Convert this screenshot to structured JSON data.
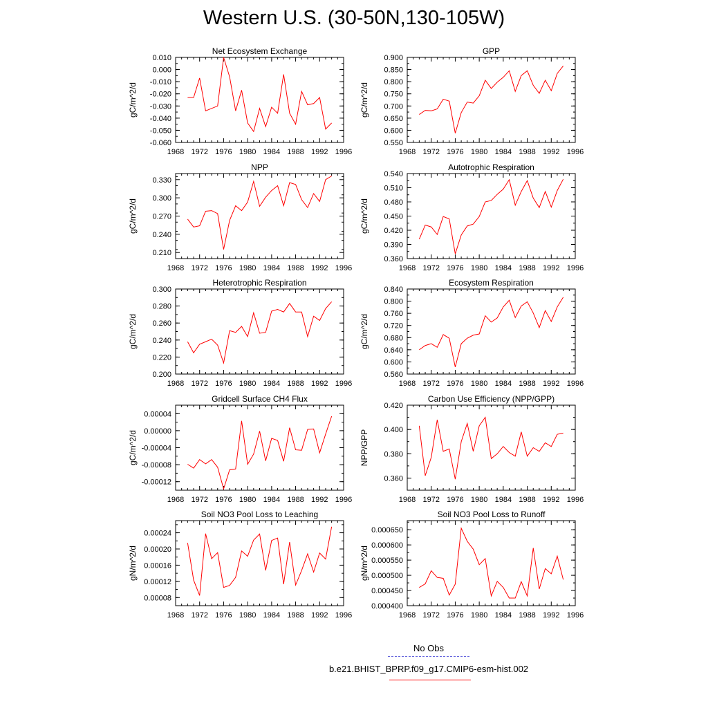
{
  "figure": {
    "title": "Western U.S. (30-50N,130-105W)"
  },
  "legend": {
    "items": [
      {
        "label": "No Obs",
        "color": "#6666dd",
        "style": "dashed"
      },
      {
        "label": "b.e21.BHIST_BPRP.f09_g17.CMIP6-esm-hist.002",
        "color": "#ff0000",
        "style": "solid"
      }
    ]
  },
  "chart_data": [
    {
      "type": "line",
      "title": "Net Ecosystem Exchange",
      "ylabel": "gC/m^2/d",
      "xlim": [
        1968,
        1996
      ],
      "xticks": [
        1968,
        1972,
        1976,
        1980,
        1984,
        1988,
        1992,
        1996
      ],
      "ylim": [
        -0.06,
        0.01
      ],
      "yticks": [
        -0.06,
        -0.05,
        -0.04,
        -0.03,
        -0.02,
        -0.01,
        0.0,
        0.01
      ],
      "ytick_labels": [
        "-0.060",
        "-0.050",
        "-0.040",
        "-0.030",
        "-0.020",
        "-0.010",
        "0.000",
        "0.010"
      ],
      "x": [
        1970,
        1971,
        1972,
        1973,
        1974,
        1975,
        1976,
        1977,
        1978,
        1979,
        1980,
        1981,
        1982,
        1983,
        1984,
        1985,
        1986,
        1987,
        1988,
        1989,
        1990,
        1991,
        1992,
        1993,
        1994
      ],
      "series": [
        {
          "color": "#ff0000",
          "values": [
            -0.023,
            -0.023,
            -0.007,
            -0.034,
            -0.032,
            -0.03,
            0.01,
            -0.006,
            -0.034,
            -0.017,
            -0.044,
            -0.051,
            -0.032,
            -0.047,
            -0.031,
            -0.036,
            -0.004,
            -0.036,
            -0.045,
            -0.018,
            -0.029,
            -0.028,
            -0.023,
            -0.049,
            -0.044
          ]
        }
      ]
    },
    {
      "type": "line",
      "title": "GPP",
      "ylabel": "gC/m^2/d",
      "xlim": [
        1968,
        1996
      ],
      "xticks": [
        1968,
        1972,
        1976,
        1980,
        1984,
        1988,
        1992,
        1996
      ],
      "ylim": [
        0.55,
        0.9
      ],
      "yticks": [
        0.55,
        0.6,
        0.65,
        0.7,
        0.75,
        0.8,
        0.85,
        0.9
      ],
      "ytick_labels": [
        "0.550",
        "0.600",
        "0.650",
        "0.700",
        "0.750",
        "0.800",
        "0.850",
        "0.900"
      ],
      "x": [
        1970,
        1971,
        1972,
        1973,
        1974,
        1975,
        1976,
        1977,
        1978,
        1979,
        1980,
        1981,
        1982,
        1983,
        1984,
        1985,
        1986,
        1987,
        1988,
        1989,
        1990,
        1991,
        1992,
        1993,
        1994
      ],
      "series": [
        {
          "color": "#ff0000",
          "values": [
            0.665,
            0.682,
            0.68,
            0.688,
            0.728,
            0.72,
            0.588,
            0.673,
            0.716,
            0.712,
            0.742,
            0.806,
            0.772,
            0.798,
            0.818,
            0.845,
            0.76,
            0.825,
            0.845,
            0.785,
            0.752,
            0.806,
            0.763,
            0.834,
            0.865
          ]
        }
      ]
    },
    {
      "type": "line",
      "title": "NPP",
      "ylabel": "gC/m^2/d",
      "xlim": [
        1968,
        1996
      ],
      "xticks": [
        1968,
        1972,
        1976,
        1980,
        1984,
        1988,
        1992,
        1996
      ],
      "ylim": [
        0.2,
        0.34
      ],
      "yticks": [
        0.21,
        0.24,
        0.27,
        0.3,
        0.33
      ],
      "ytick_labels": [
        "0.210",
        "0.240",
        "0.270",
        "0.300",
        "0.330"
      ],
      "x": [
        1970,
        1971,
        1972,
        1973,
        1974,
        1975,
        1976,
        1977,
        1978,
        1979,
        1980,
        1981,
        1982,
        1983,
        1984,
        1985,
        1986,
        1987,
        1988,
        1989,
        1990,
        1991,
        1992,
        1993,
        1994
      ],
      "series": [
        {
          "color": "#ff0000",
          "values": [
            0.265,
            0.252,
            0.254,
            0.278,
            0.279,
            0.274,
            0.215,
            0.263,
            0.287,
            0.279,
            0.293,
            0.327,
            0.286,
            0.301,
            0.312,
            0.32,
            0.287,
            0.325,
            0.322,
            0.297,
            0.284,
            0.307,
            0.294,
            0.33,
            0.336
          ]
        }
      ]
    },
    {
      "type": "line",
      "title": "Autotrophic Respiration",
      "ylabel": "gC/m^2/d",
      "xlim": [
        1968,
        1996
      ],
      "xticks": [
        1968,
        1972,
        1976,
        1980,
        1984,
        1988,
        1992,
        1996
      ],
      "ylim": [
        0.36,
        0.54
      ],
      "yticks": [
        0.36,
        0.39,
        0.42,
        0.45,
        0.48,
        0.51,
        0.54
      ],
      "ytick_labels": [
        "0.360",
        "0.390",
        "0.420",
        "0.450",
        "0.480",
        "0.510",
        "0.540"
      ],
      "x": [
        1970,
        1971,
        1972,
        1973,
        1974,
        1975,
        1976,
        1977,
        1978,
        1979,
        1980,
        1981,
        1982,
        1983,
        1984,
        1985,
        1986,
        1987,
        1988,
        1989,
        1990,
        1991,
        1992,
        1993,
        1994
      ],
      "series": [
        {
          "color": "#ff0000",
          "values": [
            0.401,
            0.431,
            0.427,
            0.411,
            0.449,
            0.444,
            0.37,
            0.41,
            0.429,
            0.433,
            0.449,
            0.48,
            0.483,
            0.496,
            0.507,
            0.527,
            0.473,
            0.502,
            0.525,
            0.488,
            0.468,
            0.502,
            0.469,
            0.504,
            0.528
          ]
        }
      ]
    },
    {
      "type": "line",
      "title": "Heterotrophic Respiration",
      "ylabel": "gC/m^2/d",
      "xlim": [
        1968,
        1996
      ],
      "xticks": [
        1968,
        1972,
        1976,
        1980,
        1984,
        1988,
        1992,
        1996
      ],
      "ylim": [
        0.2,
        0.3
      ],
      "yticks": [
        0.2,
        0.22,
        0.24,
        0.26,
        0.28,
        0.3
      ],
      "ytick_labels": [
        "0.200",
        "0.220",
        "0.240",
        "0.260",
        "0.280",
        "0.300"
      ],
      "x": [
        1970,
        1971,
        1972,
        1973,
        1974,
        1975,
        1976,
        1977,
        1978,
        1979,
        1980,
        1981,
        1982,
        1983,
        1984,
        1985,
        1986,
        1987,
        1988,
        1989,
        1990,
        1991,
        1992,
        1993,
        1994
      ],
      "series": [
        {
          "color": "#ff0000",
          "values": [
            0.238,
            0.225,
            0.235,
            0.238,
            0.241,
            0.234,
            0.213,
            0.251,
            0.249,
            0.256,
            0.244,
            0.272,
            0.248,
            0.249,
            0.274,
            0.276,
            0.273,
            0.283,
            0.273,
            0.273,
            0.244,
            0.268,
            0.263,
            0.277,
            0.285
          ]
        }
      ]
    },
    {
      "type": "line",
      "title": "Ecosystem Respiration",
      "ylabel": "gC/m^2/d",
      "xlim": [
        1968,
        1996
      ],
      "xticks": [
        1968,
        1972,
        1976,
        1980,
        1984,
        1988,
        1992,
        1996
      ],
      "ylim": [
        0.56,
        0.84
      ],
      "yticks": [
        0.56,
        0.6,
        0.64,
        0.68,
        0.72,
        0.76,
        0.8,
        0.84
      ],
      "ytick_labels": [
        "0.560",
        "0.600",
        "0.640",
        "0.680",
        "0.720",
        "0.760",
        "0.800",
        "0.840"
      ],
      "x": [
        1970,
        1971,
        1972,
        1973,
        1974,
        1975,
        1976,
        1977,
        1978,
        1979,
        1980,
        1981,
        1982,
        1983,
        1984,
        1985,
        1986,
        1987,
        1988,
        1989,
        1990,
        1991,
        1992,
        1993,
        1994
      ],
      "series": [
        {
          "color": "#ff0000",
          "values": [
            0.64,
            0.654,
            0.66,
            0.648,
            0.69,
            0.678,
            0.583,
            0.66,
            0.678,
            0.688,
            0.692,
            0.752,
            0.731,
            0.745,
            0.781,
            0.803,
            0.746,
            0.784,
            0.798,
            0.761,
            0.713,
            0.769,
            0.733,
            0.781,
            0.813
          ]
        }
      ]
    },
    {
      "type": "line",
      "title": "Gridcell Surface CH4 Flux",
      "ylabel": "gC/m^2/d",
      "xlim": [
        1968,
        1996
      ],
      "xticks": [
        1968,
        1972,
        1976,
        1980,
        1984,
        1988,
        1992,
        1996
      ],
      "ylim": [
        -0.00014,
        6e-05
      ],
      "yticks": [
        -0.00012,
        -8e-05,
        -4e-05,
        0.0,
        4e-05
      ],
      "ytick_labels": [
        "-0.00012",
        "-0.00008",
        "-0.00004",
        "0.00000",
        "0.00004"
      ],
      "x": [
        1970,
        1971,
        1972,
        1973,
        1974,
        1975,
        1976,
        1977,
        1978,
        1979,
        1980,
        1981,
        1982,
        1983,
        1984,
        1985,
        1986,
        1987,
        1988,
        1989,
        1990,
        1991,
        1992,
        1993,
        1994
      ],
      "series": [
        {
          "color": "#ff0000",
          "values": [
            -7.9e-05,
            -8.8e-05,
            -6.8e-05,
            -7.8e-05,
            -6.8e-05,
            -8.6e-05,
            -0.000137,
            -9.2e-05,
            -9e-05,
            2.3e-05,
            -7.9e-05,
            -5.5e-05,
            -1e-06,
            -7.1e-05,
            -1.8e-05,
            -2.3e-05,
            -7.2e-05,
            7e-06,
            -4.5e-05,
            -4.6e-05,
            3e-06,
            4e-06,
            -5.2e-05,
            -8e-06,
            3.4e-05
          ]
        }
      ]
    },
    {
      "type": "line",
      "title": "Carbon Use Efficiency (NPP/GPP)",
      "ylabel": "NPP/GPP",
      "xlim": [
        1968,
        1996
      ],
      "xticks": [
        1968,
        1972,
        1976,
        1980,
        1984,
        1988,
        1992,
        1996
      ],
      "ylim": [
        0.35,
        0.42
      ],
      "yticks": [
        0.36,
        0.38,
        0.4,
        0.42
      ],
      "ytick_labels": [
        "0.360",
        "0.380",
        "0.400",
        "0.420"
      ],
      "x": [
        1970,
        1971,
        1972,
        1973,
        1974,
        1975,
        1976,
        1977,
        1978,
        1979,
        1980,
        1981,
        1982,
        1983,
        1984,
        1985,
        1986,
        1987,
        1988,
        1989,
        1990,
        1991,
        1992,
        1993,
        1994
      ],
      "series": [
        {
          "color": "#ff0000",
          "values": [
            0.403,
            0.362,
            0.377,
            0.408,
            0.382,
            0.384,
            0.359,
            0.39,
            0.405,
            0.382,
            0.403,
            0.41,
            0.376,
            0.38,
            0.386,
            0.381,
            0.378,
            0.398,
            0.378,
            0.385,
            0.382,
            0.389,
            0.386,
            0.396,
            0.397
          ]
        }
      ]
    },
    {
      "type": "line",
      "title": "Soil NO3 Pool Loss to Leaching",
      "ylabel": "gN/m^2/d",
      "xlim": [
        1968,
        1996
      ],
      "xticks": [
        1968,
        1972,
        1976,
        1980,
        1984,
        1988,
        1992,
        1996
      ],
      "ylim": [
        6e-05,
        0.00027
      ],
      "yticks": [
        8e-05,
        0.00012,
        0.00016,
        0.0002,
        0.00024
      ],
      "ytick_labels": [
        "0.00008",
        "0.00012",
        "0.00016",
        "0.00020",
        "0.00024"
      ],
      "x": [
        1970,
        1971,
        1972,
        1973,
        1974,
        1975,
        1976,
        1977,
        1978,
        1979,
        1980,
        1981,
        1982,
        1983,
        1984,
        1985,
        1986,
        1987,
        1988,
        1989,
        1990,
        1991,
        1992,
        1993,
        1994
      ],
      "series": [
        {
          "color": "#ff0000",
          "values": [
            0.000215,
            0.000123,
            8.5e-05,
            0.000238,
            0.000176,
            0.000191,
            0.000105,
            0.00011,
            0.00013,
            0.000195,
            0.000182,
            0.000222,
            0.000237,
            0.000147,
            0.000221,
            0.000227,
            0.000113,
            0.000217,
            0.000111,
            0.000147,
            0.000188,
            0.000143,
            0.00019,
            0.000175,
            0.000255
          ]
        }
      ]
    },
    {
      "type": "line",
      "title": "Soil NO3 Pool Loss to Runoff",
      "ylabel": "gN/m^2/d",
      "xlim": [
        1968,
        1996
      ],
      "xticks": [
        1968,
        1972,
        1976,
        1980,
        1984,
        1988,
        1992,
        1996
      ],
      "ylim": [
        0.0004,
        0.00068
      ],
      "yticks": [
        0.0004,
        0.00045,
        0.0005,
        0.00055,
        0.0006,
        0.00065
      ],
      "ytick_labels": [
        "0.000400",
        "0.000450",
        "0.000500",
        "0.000550",
        "0.000600",
        "0.000650"
      ],
      "x": [
        1970,
        1971,
        1972,
        1973,
        1974,
        1975,
        1976,
        1977,
        1978,
        1979,
        1980,
        1981,
        1982,
        1983,
        1984,
        1985,
        1986,
        1987,
        1988,
        1989,
        1990,
        1991,
        1992,
        1993,
        1994
      ],
      "series": [
        {
          "color": "#ff0000",
          "values": [
            0.00046,
            0.000472,
            0.000515,
            0.000493,
            0.00049,
            0.000435,
            0.000471,
            0.000655,
            0.000612,
            0.000586,
            0.000535,
            0.000555,
            0.000432,
            0.00048,
            0.00046,
            0.000425,
            0.000425,
            0.000479,
            0.000432,
            0.00059,
            0.000455,
            0.000522,
            0.000505,
            0.000563,
            0.000486
          ]
        }
      ]
    }
  ]
}
